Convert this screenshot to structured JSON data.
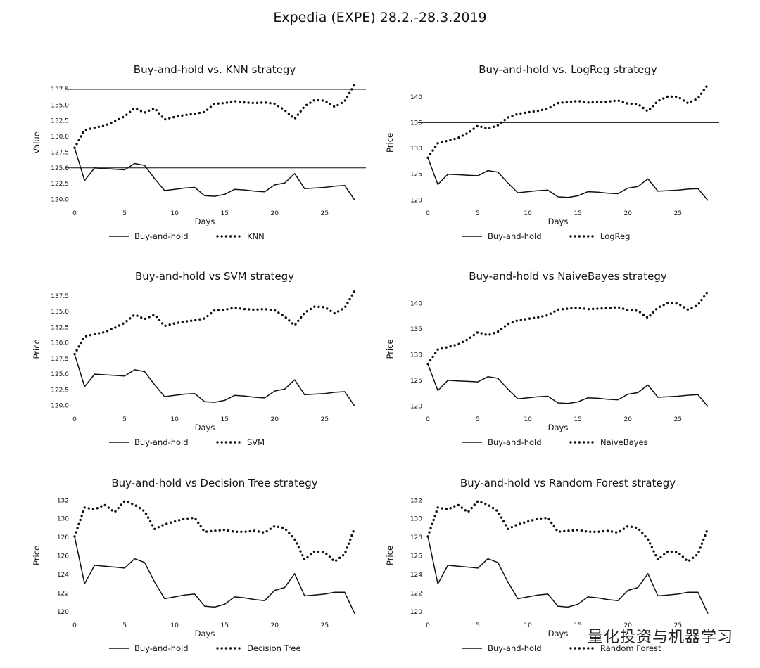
{
  "suptitle": "Expedia (EXPE) 28.2.-28.3.2019",
  "watermark": "量化投资与机器学习",
  "colors": {
    "line": "#111111",
    "background": "#ffffff"
  },
  "chart_data": [
    {
      "type": "line",
      "title": "Buy-and-hold vs. KNN strategy",
      "xlabel": "Days",
      "ylabel": "Value",
      "xlim": [
        0,
        28
      ],
      "ylim": [
        119.5,
        138.5
      ],
      "xticks": [
        0,
        5,
        10,
        15,
        20,
        25
      ],
      "xtick_labels": [
        "0",
        "5",
        "10",
        "15",
        "20",
        "25"
      ],
      "yticks": [
        120,
        122.5,
        125,
        127.5,
        130,
        132.5,
        135,
        137.5
      ],
      "ytick_labels": [
        "120.0",
        "122.5",
        "125.0",
        "127.5",
        "130.0",
        "132.5",
        "135.0",
        "137.5"
      ],
      "hlines": [
        137.5,
        125.0
      ],
      "grid": false,
      "legend": "bottom-center",
      "series": [
        {
          "name": "Buy-and-hold",
          "style": "solid",
          "values": [
            128.2,
            123.0,
            125.0,
            124.9,
            124.8,
            124.7,
            125.7,
            125.4,
            123.3,
            121.4,
            121.6,
            121.8,
            121.9,
            120.6,
            120.5,
            120.8,
            121.6,
            121.5,
            121.3,
            121.2,
            122.3,
            122.6,
            124.1,
            121.7,
            121.8,
            121.9,
            122.1,
            122.2,
            119.9
          ]
        },
        {
          "name": "KNN",
          "style": "dotted",
          "values": [
            128.2,
            131.0,
            131.4,
            131.7,
            132.4,
            133.2,
            134.5,
            133.8,
            134.5,
            132.7,
            133.1,
            133.4,
            133.6,
            133.9,
            135.2,
            135.3,
            135.6,
            135.4,
            135.3,
            135.4,
            135.2,
            134.2,
            132.8,
            134.8,
            135.8,
            135.7,
            134.7,
            135.6,
            138.3
          ]
        }
      ]
    },
    {
      "type": "line",
      "title": "Buy-and-hold vs. LogReg strategy",
      "xlabel": "Days",
      "ylabel": "Price",
      "xlim": [
        0,
        28
      ],
      "ylim": [
        119.5,
        142.7
      ],
      "xticks": [
        0,
        5,
        10,
        15,
        20,
        25
      ],
      "xtick_labels": [
        "0",
        "5",
        "10",
        "15",
        "20",
        "25"
      ],
      "yticks": [
        120,
        125,
        130,
        135,
        140
      ],
      "ytick_labels": [
        "120",
        "125",
        "130",
        "135",
        "140"
      ],
      "hlines": [
        135.0
      ],
      "grid": false,
      "legend": "bottom-center",
      "series": [
        {
          "name": "Buy-and-hold",
          "style": "solid",
          "values": [
            128.2,
            123.0,
            125.0,
            124.9,
            124.8,
            124.7,
            125.7,
            125.4,
            123.3,
            121.4,
            121.6,
            121.8,
            121.9,
            120.6,
            120.5,
            120.8,
            121.6,
            121.5,
            121.3,
            121.2,
            122.3,
            122.6,
            124.1,
            121.7,
            121.8,
            121.9,
            122.1,
            122.2,
            119.9
          ]
        },
        {
          "name": "LogReg",
          "style": "dotted",
          "values": [
            128.2,
            131.0,
            131.5,
            132.0,
            133.0,
            134.4,
            133.8,
            134.5,
            136.0,
            136.7,
            137.0,
            137.3,
            137.7,
            138.8,
            139.0,
            139.2,
            138.9,
            139.0,
            139.1,
            139.3,
            138.7,
            138.6,
            137.2,
            139.2,
            140.1,
            140.0,
            138.8,
            139.7,
            142.4
          ]
        }
      ]
    },
    {
      "type": "line",
      "title": "Buy-and-hold vs SVM strategy",
      "xlabel": "Days",
      "ylabel": "Price",
      "xlim": [
        0,
        28
      ],
      "ylim": [
        119.5,
        138.5
      ],
      "xticks": [
        0,
        5,
        10,
        15,
        20,
        25
      ],
      "xtick_labels": [
        "0",
        "5",
        "10",
        "15",
        "20",
        "25"
      ],
      "yticks": [
        120,
        122.5,
        125,
        127.5,
        130,
        132.5,
        135,
        137.5
      ],
      "ytick_labels": [
        "120.0",
        "122.5",
        "125.0",
        "127.5",
        "130.0",
        "132.5",
        "135.0",
        "137.5"
      ],
      "hlines": [],
      "grid": false,
      "legend": "bottom-center",
      "series": [
        {
          "name": "Buy-and-hold",
          "style": "solid",
          "values": [
            128.2,
            123.0,
            125.0,
            124.9,
            124.8,
            124.7,
            125.7,
            125.4,
            123.3,
            121.4,
            121.6,
            121.8,
            121.9,
            120.6,
            120.5,
            120.8,
            121.6,
            121.5,
            121.3,
            121.2,
            122.3,
            122.6,
            124.1,
            121.7,
            121.8,
            121.9,
            122.1,
            122.2,
            119.9
          ]
        },
        {
          "name": "SVM",
          "style": "dotted",
          "values": [
            128.2,
            131.0,
            131.4,
            131.7,
            132.4,
            133.2,
            134.5,
            133.8,
            134.5,
            132.7,
            133.1,
            133.4,
            133.6,
            133.9,
            135.2,
            135.3,
            135.6,
            135.4,
            135.3,
            135.4,
            135.2,
            134.2,
            132.8,
            134.8,
            135.8,
            135.7,
            134.7,
            135.6,
            138.3
          ]
        }
      ]
    },
    {
      "type": "line",
      "title": "Buy-and-hold vs NaiveBayes strategy",
      "xlabel": "Days",
      "ylabel": "Price",
      "xlim": [
        0,
        28
      ],
      "ylim": [
        119.5,
        142.7
      ],
      "xticks": [
        0,
        5,
        10,
        15,
        20,
        25
      ],
      "xtick_labels": [
        "0",
        "5",
        "10",
        "15",
        "20",
        "25"
      ],
      "yticks": [
        120,
        125,
        130,
        135,
        140
      ],
      "ytick_labels": [
        "120",
        "125",
        "130",
        "135",
        "140"
      ],
      "hlines": [],
      "grid": false,
      "legend": "bottom-center",
      "series": [
        {
          "name": "Buy-and-hold",
          "style": "solid",
          "values": [
            128.2,
            123.0,
            125.0,
            124.9,
            124.8,
            124.7,
            125.7,
            125.4,
            123.3,
            121.4,
            121.6,
            121.8,
            121.9,
            120.6,
            120.5,
            120.8,
            121.6,
            121.5,
            121.3,
            121.2,
            122.3,
            122.6,
            124.1,
            121.7,
            121.8,
            121.9,
            122.1,
            122.2,
            119.9
          ]
        },
        {
          "name": "NaiveBayes",
          "style": "dotted",
          "values": [
            128.2,
            131.0,
            131.5,
            132.0,
            133.0,
            134.4,
            133.8,
            134.5,
            136.0,
            136.7,
            137.0,
            137.3,
            137.7,
            138.8,
            139.0,
            139.2,
            138.9,
            139.0,
            139.1,
            139.3,
            138.7,
            138.6,
            137.2,
            139.2,
            140.1,
            140.0,
            138.8,
            139.7,
            142.4
          ]
        }
      ]
    },
    {
      "type": "line",
      "title": "Buy-and-hold vs Decision Tree strategy",
      "xlabel": "Days",
      "ylabel": "Price",
      "xlim": [
        0,
        28
      ],
      "ylim": [
        119.7,
        132.4
      ],
      "xticks": [
        0,
        5,
        10,
        15,
        20,
        25
      ],
      "xtick_labels": [
        "0",
        "5",
        "10",
        "15",
        "20",
        "25"
      ],
      "yticks": [
        120,
        122,
        124,
        126,
        128,
        130,
        132
      ],
      "ytick_labels": [
        "120",
        "122",
        "124",
        "126",
        "128",
        "130",
        "132"
      ],
      "hlines": [],
      "grid": false,
      "legend": "bottom-center",
      "series": [
        {
          "name": "Buy-and-hold",
          "style": "solid",
          "values": [
            128.1,
            123.0,
            125.0,
            124.9,
            124.8,
            124.7,
            125.7,
            125.3,
            123.2,
            121.4,
            121.6,
            121.8,
            121.9,
            120.6,
            120.5,
            120.8,
            121.6,
            121.5,
            121.3,
            121.2,
            122.3,
            122.6,
            124.1,
            121.7,
            121.8,
            121.9,
            122.1,
            122.1,
            119.8
          ]
        },
        {
          "name": "Decision Tree",
          "style": "dotted",
          "values": [
            128.1,
            131.2,
            131.0,
            131.5,
            130.7,
            131.9,
            131.5,
            130.8,
            128.9,
            129.4,
            129.7,
            130.0,
            130.1,
            128.6,
            128.7,
            128.8,
            128.6,
            128.6,
            128.7,
            128.5,
            129.2,
            129.0,
            127.8,
            125.6,
            126.5,
            126.4,
            125.4,
            126.2,
            129.0
          ]
        }
      ]
    },
    {
      "type": "line",
      "title": "Buy-and-hold vs Random Forest strategy",
      "xlabel": "Days",
      "ylabel": "Price",
      "xlim": [
        0,
        28
      ],
      "ylim": [
        119.7,
        132.4
      ],
      "xticks": [
        0,
        5,
        10,
        15,
        20,
        25
      ],
      "xtick_labels": [
        "0",
        "5",
        "10",
        "15",
        "20",
        "25"
      ],
      "yticks": [
        120,
        122,
        124,
        126,
        128,
        130,
        132
      ],
      "ytick_labels": [
        "120",
        "122",
        "124",
        "126",
        "128",
        "130",
        "132"
      ],
      "hlines": [],
      "grid": false,
      "legend": "bottom-center",
      "series": [
        {
          "name": "Buy-and-hold",
          "style": "solid",
          "values": [
            128.1,
            123.0,
            125.0,
            124.9,
            124.8,
            124.7,
            125.7,
            125.3,
            123.2,
            121.4,
            121.6,
            121.8,
            121.9,
            120.6,
            120.5,
            120.8,
            121.6,
            121.5,
            121.3,
            121.2,
            122.3,
            122.6,
            124.1,
            121.7,
            121.8,
            121.9,
            122.1,
            122.1,
            119.8
          ]
        },
        {
          "name": "Random Forest",
          "style": "dotted",
          "values": [
            128.1,
            131.2,
            131.0,
            131.5,
            130.7,
            131.9,
            131.5,
            130.8,
            128.9,
            129.4,
            129.7,
            130.0,
            130.1,
            128.6,
            128.7,
            128.8,
            128.6,
            128.6,
            128.7,
            128.5,
            129.2,
            129.0,
            127.8,
            125.6,
            126.5,
            126.4,
            125.4,
            126.2,
            129.0
          ]
        }
      ]
    }
  ]
}
